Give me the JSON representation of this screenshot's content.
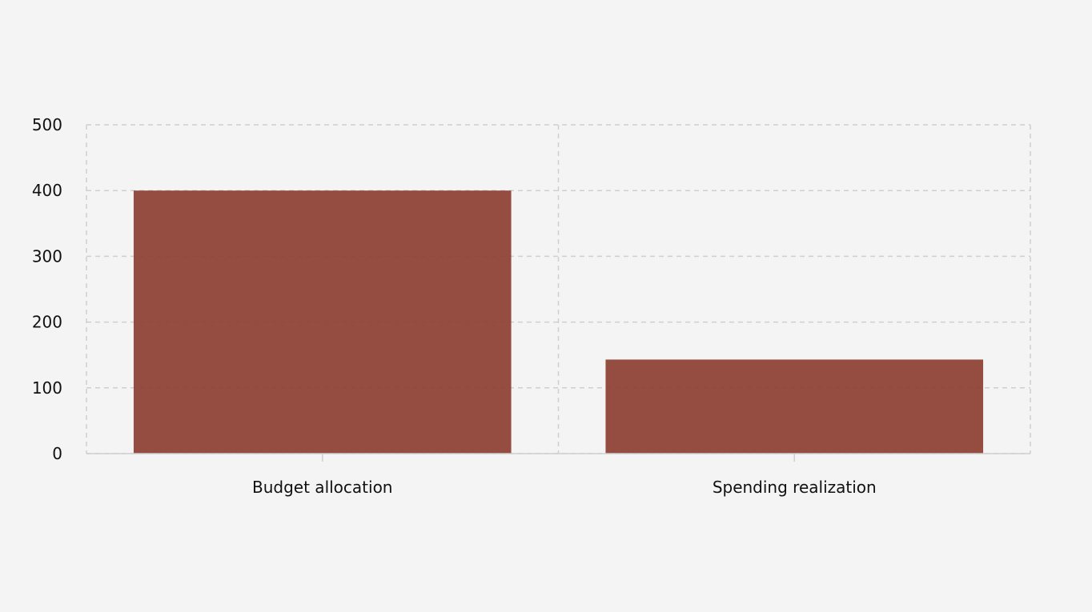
{
  "chart_data": {
    "type": "bar",
    "title": "",
    "xlabel": "",
    "ylabel": "",
    "categories": [
      "Budget allocation",
      "Spending realization"
    ],
    "values": [
      400,
      143
    ],
    "ylim": [
      0,
      500
    ],
    "yticks": [
      0,
      100,
      200,
      300,
      400,
      500
    ],
    "ytick_labels": [
      "0",
      "100",
      "200",
      "300",
      "400",
      "500"
    ],
    "grid": true,
    "bar_color": "#8b3a2e"
  }
}
